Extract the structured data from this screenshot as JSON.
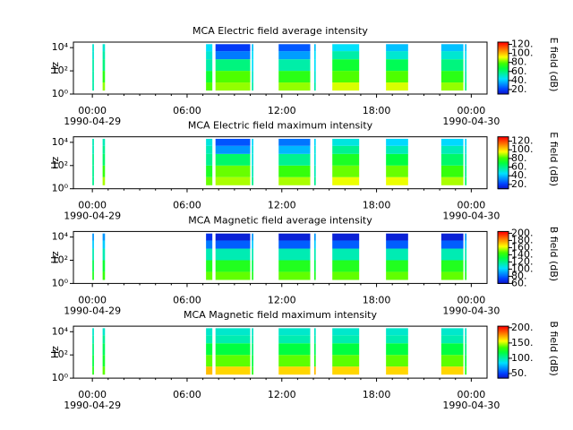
{
  "chart_data": [
    {
      "type": "heatmap",
      "title": "MCA  Electric field average intensity",
      "ylabel": "Hz",
      "colorbar_label": "E field (dB)",
      "xlim": [
        -1.2,
        25
      ],
      "xticks": [
        {
          "value": 0,
          "label": "00:00"
        },
        {
          "value": 6,
          "label": "06:00"
        },
        {
          "value": 12,
          "label": "12:00"
        },
        {
          "value": 18,
          "label": "18:00"
        },
        {
          "value": 24,
          "label": "00:00"
        }
      ],
      "xtick_dates": [
        {
          "value": 0,
          "label": "1990-04-29"
        },
        {
          "value": 24,
          "label": "1990-04-30"
        }
      ],
      "xminor_ticks": [
        1,
        2,
        3,
        4,
        5,
        7,
        8,
        9,
        10,
        11,
        13,
        14,
        15,
        16,
        17,
        19,
        20,
        21,
        22,
        23
      ],
      "log_y": true,
      "ylim": [
        1,
        30000
      ],
      "yticks": [
        {
          "value": 1,
          "label": "10⁰"
        },
        {
          "value": 100,
          "label": "10²"
        },
        {
          "value": 10000,
          "label": "10⁴"
        }
      ],
      "freq_edges": [
        2,
        10,
        100,
        1000,
        5000,
        20000
      ],
      "time_ranges": [
        [
          0.0,
          0.1
        ],
        [
          0.65,
          0.8
        ],
        [
          7.2,
          7.6
        ],
        [
          7.8,
          10.0
        ],
        [
          10.1,
          10.2
        ],
        [
          11.8,
          13.8
        ],
        [
          14.05,
          14.15
        ],
        [
          15.2,
          16.9
        ],
        [
          18.6,
          20.0
        ],
        [
          22.1,
          23.5
        ],
        [
          23.6,
          23.7
        ]
      ],
      "values": [
        [
          55,
          55,
          55,
          50,
          50
        ],
        [
          85,
          75,
          60,
          55,
          50
        ],
        [
          80,
          70,
          55,
          50,
          45
        ],
        [
          85,
          80,
          60,
          30,
          20
        ],
        [
          55,
          50,
          45,
          45,
          40
        ],
        [
          85,
          75,
          55,
          35,
          25
        ],
        [
          55,
          50,
          45,
          45,
          40
        ],
        [
          90,
          80,
          70,
          55,
          45
        ],
        [
          90,
          80,
          65,
          50,
          40
        ],
        [
          85,
          75,
          60,
          50,
          40
        ],
        [
          60,
          55,
          50,
          45,
          40
        ]
      ],
      "clim": [
        10,
        125
      ],
      "cticks": [
        {
          "value": 20,
          "label": "20."
        },
        {
          "value": 40,
          "label": "40."
        },
        {
          "value": 60,
          "label": "60."
        },
        {
          "value": 80,
          "label": "80."
        },
        {
          "value": 100,
          "label": "100."
        },
        {
          "value": 120,
          "label": "120."
        }
      ]
    },
    {
      "type": "heatmap",
      "title": "MCA  Electric field maximum intensity",
      "ylabel": "Hz",
      "colorbar_label": "E field (dB)",
      "xlim": [
        -1.2,
        25
      ],
      "xticks": [
        {
          "value": 0,
          "label": "00:00"
        },
        {
          "value": 6,
          "label": "06:00"
        },
        {
          "value": 12,
          "label": "12:00"
        },
        {
          "value": 18,
          "label": "18:00"
        },
        {
          "value": 24,
          "label": "00:00"
        }
      ],
      "xtick_dates": [
        {
          "value": 0,
          "label": "1990-04-29"
        },
        {
          "value": 24,
          "label": "1990-04-30"
        }
      ],
      "xminor_ticks": [
        1,
        2,
        3,
        4,
        5,
        7,
        8,
        9,
        10,
        11,
        13,
        14,
        15,
        16,
        17,
        19,
        20,
        21,
        22,
        23
      ],
      "log_y": true,
      "ylim": [
        1,
        30000
      ],
      "yticks": [
        {
          "value": 1,
          "label": "10⁰"
        },
        {
          "value": 100,
          "label": "10²"
        },
        {
          "value": 10000,
          "label": "10⁴"
        }
      ],
      "freq_edges": [
        2,
        10,
        100,
        1000,
        5000,
        20000
      ],
      "time_ranges": [
        [
          0.0,
          0.1
        ],
        [
          0.65,
          0.8
        ],
        [
          7.2,
          7.6
        ],
        [
          7.8,
          10.0
        ],
        [
          10.1,
          10.2
        ],
        [
          11.8,
          13.8
        ],
        [
          14.05,
          14.15
        ],
        [
          15.2,
          16.9
        ],
        [
          18.6,
          20.0
        ],
        [
          22.1,
          23.5
        ],
        [
          23.6,
          23.7
        ]
      ],
      "values": [
        [
          60,
          60,
          60,
          55,
          55
        ],
        [
          90,
          80,
          65,
          60,
          55
        ],
        [
          85,
          75,
          60,
          55,
          50
        ],
        [
          90,
          85,
          65,
          35,
          25
        ],
        [
          60,
          55,
          50,
          50,
          45
        ],
        [
          90,
          80,
          60,
          40,
          30
        ],
        [
          60,
          55,
          50,
          50,
          45
        ],
        [
          95,
          85,
          75,
          60,
          50
        ],
        [
          95,
          85,
          70,
          55,
          45
        ],
        [
          90,
          80,
          65,
          55,
          45
        ],
        [
          65,
          60,
          55,
          50,
          45
        ]
      ],
      "clim": [
        10,
        130
      ],
      "cticks": [
        {
          "value": 20,
          "label": "20."
        },
        {
          "value": 40,
          "label": "40."
        },
        {
          "value": 60,
          "label": "60."
        },
        {
          "value": 80,
          "label": "80."
        },
        {
          "value": 100,
          "label": "100."
        },
        {
          "value": 120,
          "label": "120."
        }
      ]
    },
    {
      "type": "heatmap",
      "title": "MCA  Magnetic field average intensity",
      "ylabel": "Hz",
      "colorbar_label": "B field (dB)",
      "xlim": [
        -1.2,
        25
      ],
      "xticks": [
        {
          "value": 0,
          "label": "00:00"
        },
        {
          "value": 6,
          "label": "06:00"
        },
        {
          "value": 12,
          "label": "12:00"
        },
        {
          "value": 18,
          "label": "18:00"
        },
        {
          "value": 24,
          "label": "00:00"
        }
      ],
      "xtick_dates": [
        {
          "value": 0,
          "label": "1990-04-29"
        },
        {
          "value": 24,
          "label": "1990-04-30"
        }
      ],
      "xminor_ticks": [
        1,
        2,
        3,
        4,
        5,
        7,
        8,
        9,
        10,
        11,
        13,
        14,
        15,
        16,
        17,
        19,
        20,
        21,
        22,
        23
      ],
      "log_y": true,
      "ylim": [
        1,
        30000
      ],
      "yticks": [
        {
          "value": 1,
          "label": "10⁰"
        },
        {
          "value": 100,
          "label": "10²"
        },
        {
          "value": 10000,
          "label": "10⁴"
        }
      ],
      "freq_edges": [
        2,
        10,
        100,
        1000,
        5000,
        20000
      ],
      "time_ranges": [
        [
          0.0,
          0.1
        ],
        [
          0.65,
          0.8
        ],
        [
          7.2,
          7.6
        ],
        [
          7.8,
          10.0
        ],
        [
          10.1,
          10.2
        ],
        [
          11.8,
          13.8
        ],
        [
          14.05,
          14.15
        ],
        [
          15.2,
          16.9
        ],
        [
          18.6,
          20.0
        ],
        [
          22.1,
          23.5
        ],
        [
          23.6,
          23.7
        ]
      ],
      "values": [
        [
          140,
          130,
          115,
          100,
          90
        ],
        [
          145,
          135,
          115,
          100,
          90
        ],
        [
          150,
          140,
          115,
          85,
          70
        ],
        [
          150,
          140,
          115,
          80,
          65
        ],
        [
          140,
          130,
          115,
          100,
          90
        ],
        [
          150,
          140,
          115,
          80,
          65
        ],
        [
          140,
          130,
          115,
          100,
          90
        ],
        [
          150,
          140,
          115,
          80,
          65
        ],
        [
          150,
          140,
          115,
          80,
          65
        ],
        [
          150,
          140,
          115,
          80,
          65
        ],
        [
          140,
          130,
          115,
          100,
          90
        ]
      ],
      "clim": [
        60,
        205
      ],
      "cticks": [
        {
          "value": 60,
          "label": "60."
        },
        {
          "value": 80,
          "label": "80."
        },
        {
          "value": 100,
          "label": "100."
        },
        {
          "value": 120,
          "label": "120."
        },
        {
          "value": 140,
          "label": "140."
        },
        {
          "value": 160,
          "label": "160."
        },
        {
          "value": 180,
          "label": "180."
        },
        {
          "value": 200,
          "label": "200."
        }
      ]
    },
    {
      "type": "heatmap",
      "title": "MCA  Magnetic field maximum intensity",
      "ylabel": "Hz",
      "colorbar_label": "B field (dB)",
      "xlim": [
        -1.2,
        25
      ],
      "xticks": [
        {
          "value": 0,
          "label": "00:00"
        },
        {
          "value": 6,
          "label": "06:00"
        },
        {
          "value": 12,
          "label": "12:00"
        },
        {
          "value": 18,
          "label": "18:00"
        },
        {
          "value": 24,
          "label": "00:00"
        }
      ],
      "xtick_dates": [
        {
          "value": 0,
          "label": "1990-04-29"
        },
        {
          "value": 24,
          "label": "1990-04-30"
        }
      ],
      "xminor_ticks": [
        1,
        2,
        3,
        4,
        5,
        7,
        8,
        9,
        10,
        11,
        13,
        14,
        15,
        16,
        17,
        19,
        20,
        21,
        22,
        23
      ],
      "log_y": true,
      "ylim": [
        1,
        30000
      ],
      "yticks": [
        {
          "value": 1,
          "label": "10⁰"
        },
        {
          "value": 100,
          "label": "10²"
        },
        {
          "value": 10000,
          "label": "10⁴"
        }
      ],
      "freq_edges": [
        2,
        10,
        100,
        1000,
        5000,
        20000
      ],
      "time_ranges": [
        [
          0.0,
          0.1
        ],
        [
          0.65,
          0.8
        ],
        [
          7.2,
          7.6
        ],
        [
          7.8,
          10.0
        ],
        [
          10.1,
          10.2
        ],
        [
          11.8,
          13.8
        ],
        [
          14.05,
          14.15
        ],
        [
          15.2,
          16.9
        ],
        [
          18.6,
          20.0
        ],
        [
          22.1,
          23.5
        ],
        [
          23.6,
          23.7
        ]
      ],
      "values": [
        [
          130,
          120,
          110,
          100,
          95
        ],
        [
          140,
          125,
          115,
          105,
          95
        ],
        [
          170,
          140,
          120,
          100,
          95
        ],
        [
          165,
          140,
          120,
          100,
          95
        ],
        [
          130,
          120,
          110,
          100,
          95
        ],
        [
          165,
          140,
          120,
          100,
          95
        ],
        [
          170,
          130,
          115,
          100,
          95
        ],
        [
          165,
          140,
          120,
          100,
          95
        ],
        [
          165,
          140,
          120,
          100,
          95
        ],
        [
          165,
          140,
          120,
          100,
          95
        ],
        [
          130,
          120,
          110,
          100,
          95
        ]
      ],
      "clim": [
        35,
        205
      ],
      "cticks": [
        {
          "value": 50,
          "label": "50."
        },
        {
          "value": 100,
          "label": "100."
        },
        {
          "value": 150,
          "label": "150."
        },
        {
          "value": 200,
          "label": "200."
        }
      ]
    }
  ]
}
